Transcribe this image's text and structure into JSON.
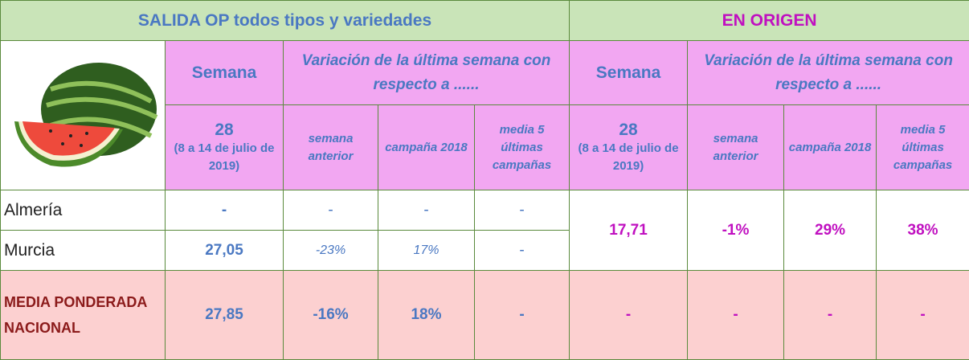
{
  "header": {
    "left_title": "SALIDA OP todos tipos y variedades",
    "right_title": "EN ORIGEN"
  },
  "columns": {
    "left": {
      "semana": "Semana",
      "variacion": "Variación de la última semana con respecto a ......",
      "week": "28",
      "dates": "(8 a 14 de julio de 2019)",
      "sub": [
        "semana anterior",
        "campaña 2018",
        "media 5 últimas campañas"
      ]
    },
    "right": {
      "semana": "Semana",
      "variacion": "Variación de la última semana con respecto a ......",
      "week": "28",
      "dates": "(8 a 14 de julio de 2019)",
      "sub": [
        "semana anterior",
        "campaña 2018",
        "media 5 últimas campañas"
      ]
    }
  },
  "rows": [
    {
      "label": "Almería",
      "values": [
        "-",
        "-",
        "-",
        "-"
      ]
    },
    {
      "label": "Murcia",
      "values": [
        "27,05",
        "-23%",
        "17%",
        "-"
      ]
    },
    {
      "label": "MEDIA PONDERADA NACIONAL",
      "values": [
        "27,85",
        "-16%",
        "18%",
        "-"
      ],
      "origin": [
        "-",
        "-",
        "-",
        "-"
      ]
    }
  ],
  "origin": {
    "values": [
      "17,71",
      "-1%",
      "29%",
      "38%"
    ]
  }
}
